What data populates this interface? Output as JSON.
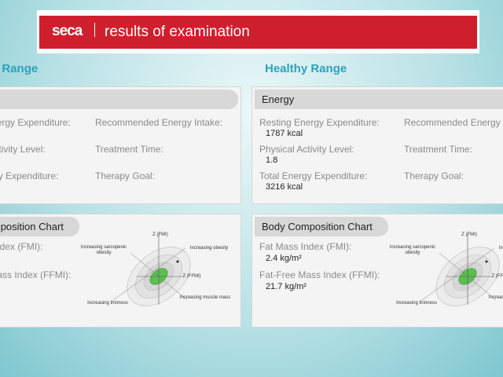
{
  "header": {
    "brand": "seca",
    "title": "results of examination"
  },
  "panel": {
    "heading": "Healthy Range",
    "energy": {
      "title": "Energy",
      "items": [
        {
          "label": "Resting Energy Expenditure:",
          "value": "1787 kcal"
        },
        {
          "label": "Recommended Energy Intake:"
        },
        {
          "label": "Physical Activity Level:",
          "value": "1.8"
        },
        {
          "label": "Treatment Time:"
        },
        {
          "label": "Total Energy Expenditure:",
          "value": "3216 kcal"
        },
        {
          "label": "Therapy Goal:"
        }
      ]
    },
    "body_composition": {
      "title": "Body Composition Chart",
      "items": [
        {
          "label": "Fat Mass Index (FMI):",
          "value": "2.4 kg/m²"
        },
        {
          "label": "Fat-Free Mass Index (FFMI):",
          "value": "21.7 kg/m²"
        }
      ],
      "chart_labels": {
        "top_left": "Increasing sarcopenic obesity",
        "top_right": "Increasing obesity",
        "bottom_left": "Increasing thinness",
        "bottom_right": "Increasing muscle mass",
        "y_axis": "Z (FMI)",
        "x_axis": "Z (FFMI)"
      }
    }
  }
}
